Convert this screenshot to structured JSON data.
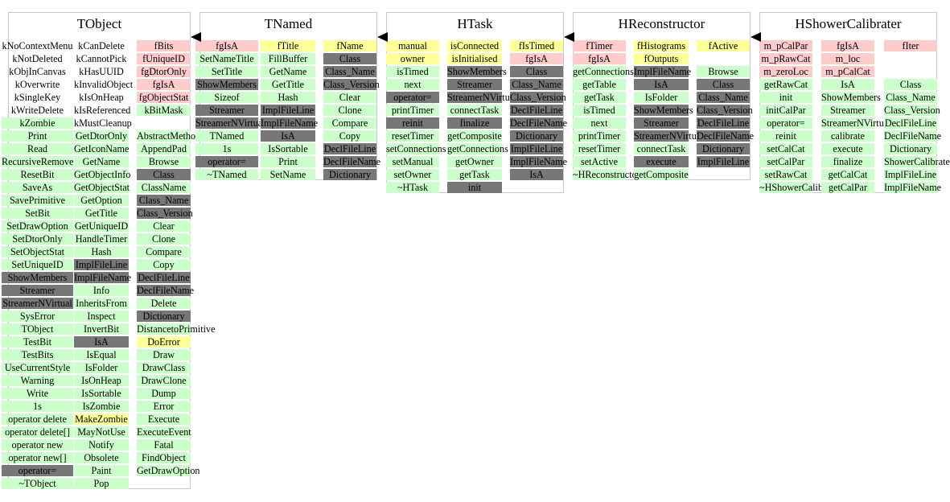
{
  "classes": [
    {
      "title": "TObject",
      "columns": [
        [
          [
            "kNoContextMenu",
            "w"
          ],
          [
            "kNotDeleted",
            "w"
          ],
          [
            "kObjInCanvas",
            "w"
          ],
          [
            "kOverwrite",
            "w"
          ],
          [
            "kSingleKey",
            "w"
          ],
          [
            "kWriteDelete",
            "w"
          ],
          [
            "kZombie",
            "g"
          ],
          [
            "Print",
            "g"
          ],
          [
            "Read",
            "g"
          ],
          [
            "RecursiveRemove",
            "g"
          ],
          [
            "ResetBit",
            "g"
          ],
          [
            "SaveAs",
            "g"
          ],
          [
            "SavePrimitive",
            "g"
          ],
          [
            "SetBit",
            "g"
          ],
          [
            "SetDrawOption",
            "g"
          ],
          [
            "SetDtorOnly",
            "g"
          ],
          [
            "SetObjectStat",
            "g"
          ],
          [
            "SetUniqueID",
            "g"
          ],
          [
            "ShowMembers",
            "d"
          ],
          [
            "Streamer",
            "d"
          ],
          [
            "StreamerNVirtual",
            "d"
          ],
          [
            "SysError",
            "g"
          ],
          [
            "TObject",
            "g"
          ],
          [
            "TestBit",
            "g"
          ],
          [
            "TestBits",
            "g"
          ],
          [
            "UseCurrentStyle",
            "g"
          ],
          [
            "Warning",
            "g"
          ],
          [
            "Write",
            "g"
          ],
          [
            "1s",
            "g"
          ],
          [
            "operator delete",
            "g"
          ],
          [
            "operator delete[]",
            "g"
          ],
          [
            "operator new",
            "g"
          ],
          [
            "operator new[]",
            "g"
          ],
          [
            "operator=",
            "d"
          ],
          [
            "~TObject",
            "g"
          ]
        ],
        [
          [
            "kCanDelete",
            "w"
          ],
          [
            "kCannotPick",
            "w"
          ],
          [
            "kHasUUID",
            "w"
          ],
          [
            "kInvalidObject",
            "w"
          ],
          [
            "kIsOnHeap",
            "w"
          ],
          [
            "kIsReferenced",
            "w"
          ],
          [
            "kMustCleanup",
            "w"
          ],
          [
            "GetDtorOnly",
            "g"
          ],
          [
            "GetIconName",
            "g"
          ],
          [
            "GetName",
            "g"
          ],
          [
            "GetObjectInfo",
            "g"
          ],
          [
            "GetObjectStat",
            "g"
          ],
          [
            "GetOption",
            "g"
          ],
          [
            "GetTitle",
            "g"
          ],
          [
            "GetUniqueID",
            "g"
          ],
          [
            "HandleTimer",
            "g"
          ],
          [
            "Hash",
            "g"
          ],
          [
            "ImplFileLine",
            "d"
          ],
          [
            "ImplFileName",
            "d"
          ],
          [
            "Info",
            "g"
          ],
          [
            "InheritsFrom",
            "g"
          ],
          [
            "Inspect",
            "g"
          ],
          [
            "InvertBit",
            "g"
          ],
          [
            "IsA",
            "d"
          ],
          [
            "IsEqual",
            "g"
          ],
          [
            "IsFolder",
            "g"
          ],
          [
            "IsOnHeap",
            "g"
          ],
          [
            "IsSortable",
            "g"
          ],
          [
            "IsZombie",
            "g"
          ],
          [
            "MakeZombie",
            "y"
          ],
          [
            "MayNotUse",
            "g"
          ],
          [
            "Notify",
            "g"
          ],
          [
            "Obsolete",
            "g"
          ],
          [
            "Paint",
            "g"
          ],
          [
            "Pop",
            "g"
          ]
        ],
        [
          [
            "fBits",
            "p"
          ],
          [
            "fUniqueID",
            "p"
          ],
          [
            "fgDtorOnly",
            "p"
          ],
          [
            "fgIsA",
            "p"
          ],
          [
            "fgObjectStat",
            "p"
          ],
          [
            "kBitMask",
            "g"
          ],
          [
            "",
            "w"
          ],
          [
            "AbstractMethod",
            "g"
          ],
          [
            "AppendPad",
            "g"
          ],
          [
            "Browse",
            "g"
          ],
          [
            "Class",
            "d"
          ],
          [
            "ClassName",
            "g"
          ],
          [
            "Class_Name",
            "d"
          ],
          [
            "Class_Version",
            "d"
          ],
          [
            "Clear",
            "g"
          ],
          [
            "Clone",
            "g"
          ],
          [
            "Compare",
            "g"
          ],
          [
            "Copy",
            "g"
          ],
          [
            "DeclFileLine",
            "d"
          ],
          [
            "DeclFileName",
            "d"
          ],
          [
            "Delete",
            "g"
          ],
          [
            "Dictionary",
            "d"
          ],
          [
            "DistancetoPrimitive",
            "g"
          ],
          [
            "DoError",
            "y"
          ],
          [
            "Draw",
            "g"
          ],
          [
            "DrawClass",
            "g"
          ],
          [
            "DrawClone",
            "g"
          ],
          [
            "Dump",
            "g"
          ],
          [
            "Error",
            "g"
          ],
          [
            "Execute",
            "g"
          ],
          [
            "ExecuteEvent",
            "g"
          ],
          [
            "Fatal",
            "g"
          ],
          [
            "FindObject",
            "g"
          ],
          [
            "GetDrawOption",
            "g"
          ]
        ]
      ]
    },
    {
      "title": "TNamed",
      "columns": [
        [
          [
            "fgIsA",
            "p"
          ],
          [
            "SetNameTitle",
            "g"
          ],
          [
            "SetTitle",
            "g"
          ],
          [
            "ShowMembers",
            "d"
          ],
          [
            "Sizeof",
            "g"
          ],
          [
            "Streamer",
            "d"
          ],
          [
            "StreamerNVirtual",
            "d"
          ],
          [
            "TNamed",
            "g"
          ],
          [
            "1s",
            "g"
          ],
          [
            "operator=",
            "d"
          ],
          [
            "~TNamed",
            "g"
          ]
        ],
        [
          [
            "fTitle",
            "y"
          ],
          [
            "FillBuffer",
            "g"
          ],
          [
            "GetName",
            "g"
          ],
          [
            "GetTitle",
            "g"
          ],
          [
            "Hash",
            "g"
          ],
          [
            "ImplFileLine",
            "d"
          ],
          [
            "ImplFileName",
            "d"
          ],
          [
            "IsA",
            "d"
          ],
          [
            "IsSortable",
            "g"
          ],
          [
            "Print",
            "g"
          ],
          [
            "SetName",
            "g"
          ]
        ],
        [
          [
            "fName",
            "y"
          ],
          [
            "Class",
            "d"
          ],
          [
            "Class_Name",
            "d"
          ],
          [
            "Class_Version",
            "d"
          ],
          [
            "Clear",
            "g"
          ],
          [
            "Clone",
            "g"
          ],
          [
            "Compare",
            "g"
          ],
          [
            "Copy",
            "g"
          ],
          [
            "DeclFileLine",
            "d"
          ],
          [
            "DeclFileName",
            "d"
          ],
          [
            "Dictionary",
            "d"
          ]
        ]
      ]
    },
    {
      "title": "HTask",
      "columns": [
        [
          [
            "manual",
            "y"
          ],
          [
            "owner",
            "y"
          ],
          [
            "isTimed",
            "g"
          ],
          [
            "next",
            "g"
          ],
          [
            "operator=",
            "d"
          ],
          [
            "printTimer",
            "g"
          ],
          [
            "reinit",
            "d"
          ],
          [
            "resetTimer",
            "g"
          ],
          [
            "setConnections",
            "g"
          ],
          [
            "setManual",
            "g"
          ],
          [
            "setOwner",
            "g"
          ],
          [
            "~HTask",
            "g"
          ]
        ],
        [
          [
            "isConnected",
            "y"
          ],
          [
            "isInitialised",
            "y"
          ],
          [
            "ShowMembers",
            "d"
          ],
          [
            "Streamer",
            "d"
          ],
          [
            "StreamerNVirtual",
            "d"
          ],
          [
            "connectTask",
            "g"
          ],
          [
            "finalize",
            "d"
          ],
          [
            "getComposite",
            "g"
          ],
          [
            "getConnections",
            "g"
          ],
          [
            "getOwner",
            "g"
          ],
          [
            "getTask",
            "g"
          ],
          [
            "init",
            "d"
          ]
        ],
        [
          [
            "fIsTimed",
            "y"
          ],
          [
            "fgIsA",
            "p"
          ],
          [
            "Class",
            "d"
          ],
          [
            "Class_Name",
            "d"
          ],
          [
            "Class_Version",
            "d"
          ],
          [
            "DeclFileLine",
            "d"
          ],
          [
            "DeclFileName",
            "d"
          ],
          [
            "Dictionary",
            "d"
          ],
          [
            "ImplFileLine",
            "d"
          ],
          [
            "ImplFileName",
            "d"
          ],
          [
            "IsA",
            "d"
          ]
        ]
      ]
    },
    {
      "title": "HReconstructor",
      "columns": [
        [
          [
            "fTimer",
            "p"
          ],
          [
            "fgIsA",
            "p"
          ],
          [
            "getConnections",
            "g"
          ],
          [
            "getTable",
            "g"
          ],
          [
            "getTask",
            "g"
          ],
          [
            "isTimed",
            "g"
          ],
          [
            "next",
            "g"
          ],
          [
            "printTimer",
            "g"
          ],
          [
            "resetTimer",
            "g"
          ],
          [
            "setActive",
            "g"
          ],
          [
            "~HReconstructor",
            "g"
          ]
        ],
        [
          [
            "fHistograms",
            "y"
          ],
          [
            "fOutputs",
            "y"
          ],
          [
            "ImplFileName",
            "d"
          ],
          [
            "IsA",
            "d"
          ],
          [
            "IsFolder",
            "g"
          ],
          [
            "ShowMembers",
            "d"
          ],
          [
            "Streamer",
            "d"
          ],
          [
            "StreamerNVirtual",
            "d"
          ],
          [
            "connectTask",
            "g"
          ],
          [
            "execute",
            "d"
          ],
          [
            "getComposite",
            "g"
          ]
        ],
        [
          [
            "fActive",
            "y"
          ],
          [
            "",
            "w"
          ],
          [
            "Browse",
            "g"
          ],
          [
            "Class",
            "d"
          ],
          [
            "Class_Name",
            "d"
          ],
          [
            "Class_Version",
            "d"
          ],
          [
            "DeclFileLine",
            "d"
          ],
          [
            "DeclFileName",
            "d"
          ],
          [
            "Dictionary",
            "d"
          ],
          [
            "ImplFileLine",
            "d"
          ]
        ]
      ]
    },
    {
      "title": "HShowerCalibrater",
      "columns": [
        [
          [
            "m_pCalPar",
            "p"
          ],
          [
            "m_pRawCat",
            "p"
          ],
          [
            "m_zeroLoc",
            "p"
          ],
          [
            "getRawCat",
            "g"
          ],
          [
            "init",
            "g"
          ],
          [
            "initCalPar",
            "g"
          ],
          [
            "operator=",
            "g"
          ],
          [
            "reinit",
            "g"
          ],
          [
            "setCalCat",
            "g"
          ],
          [
            "setCalPar",
            "g"
          ],
          [
            "setRawCat",
            "g"
          ],
          [
            "~HShowerCalibrater",
            "g"
          ]
        ],
        [
          [
            "fgIsA",
            "p"
          ],
          [
            "m_loc",
            "p"
          ],
          [
            "m_pCalCat",
            "p"
          ],
          [
            "IsA",
            "g"
          ],
          [
            "ShowMembers",
            "g"
          ],
          [
            "Streamer",
            "g"
          ],
          [
            "StreamerNVirtual",
            "g"
          ],
          [
            "calibrate",
            "g"
          ],
          [
            "execute",
            "g"
          ],
          [
            "finalize",
            "g"
          ],
          [
            "getCalCat",
            "g"
          ],
          [
            "getCalPar",
            "g"
          ]
        ],
        [
          [
            "fIter",
            "p"
          ],
          [
            "",
            "w"
          ],
          [
            "",
            "w"
          ],
          [
            "Class",
            "g"
          ],
          [
            "Class_Name",
            "g"
          ],
          [
            "Class_Version",
            "g"
          ],
          [
            "DeclFileLine",
            "g"
          ],
          [
            "DeclFileName",
            "g"
          ],
          [
            "Dictionary",
            "g"
          ],
          [
            "ShowerCalibrater",
            "g"
          ],
          [
            "ImplFileLine",
            "g"
          ],
          [
            "ImplFileName",
            "g"
          ]
        ]
      ]
    }
  ]
}
